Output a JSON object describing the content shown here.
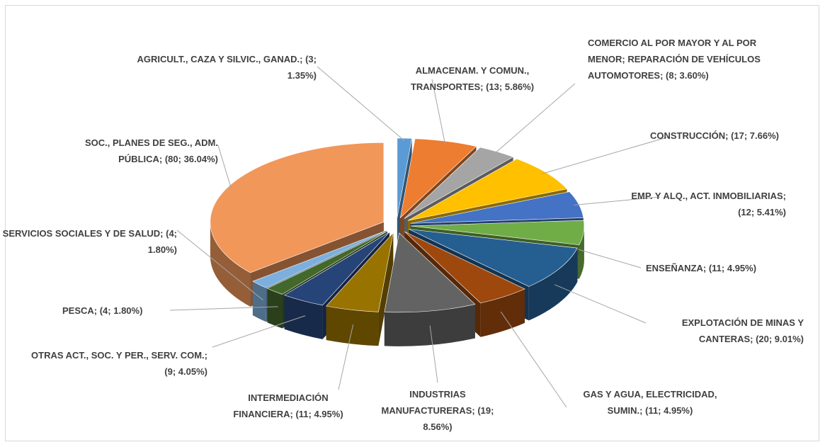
{
  "chart_data": {
    "type": "pie3d",
    "labels": [
      "AGRICULT., CAZA Y SILVIC., GANAD.; (3; 1.35%)",
      "ALMACENAM. Y COMUN., TRANSPORTES; (13; 5.86%)",
      "COMERCIO AL POR MAYOR Y AL POR MENOR; REPARACIÓN DE VEHÍCULOS AUTOMOTORES; (8; 3.60%)",
      "CONSTRUCCIÓN; (17; 7.66%)",
      "EMP. Y ALQ., ACT. INMOBILIARIAS; (12; 5.41%)",
      "ENSEÑANZA; (11; 4.95%)",
      "EXPLOTACIÓN DE MINAS Y CANTERAS; (20; 9.01%)",
      "GAS Y AGUA, ELECTRICIDAD, SUMIN.; (11; 4.95%)",
      "INDUSTRIAS MANUFACTURERAS; (19; 8.56%)",
      "INTERMEDIACIÓN FINANCIERA; (11; 4.95%)",
      "OTRAS ACT., SOC. Y PER., SERV. COM.; (9; 4.05%)",
      "PESCA; (4; 1.80%)",
      "SERVICIOS SOCIALES Y DE SALUD; (4; 1.80%)",
      "SOC., PLANES DE SEG., ADM. PÚBLICA; (80; 36.04%)"
    ],
    "values": [
      3,
      13,
      8,
      17,
      12,
      11,
      20,
      11,
      19,
      11,
      9,
      4,
      4,
      80
    ],
    "percentages": [
      1.35,
      5.86,
      3.6,
      7.66,
      5.41,
      4.95,
      9.01,
      4.95,
      8.56,
      4.95,
      4.05,
      1.8,
      1.8,
      36.04
    ],
    "colors": [
      "#5b9bd5",
      "#ed7d31",
      "#a5a5a5",
      "#ffc000",
      "#4472c4",
      "#70ad47",
      "#255e91",
      "#9e480e",
      "#636363",
      "#997300",
      "#264478",
      "#43682b",
      "#7cafdd",
      "#f1975a"
    ]
  }
}
